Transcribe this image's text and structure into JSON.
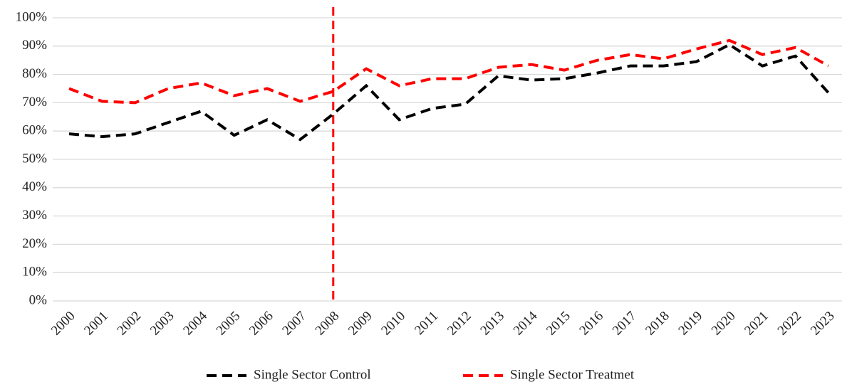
{
  "chart_data": {
    "type": "line",
    "categories": [
      "2000",
      "2001",
      "2002",
      "2003",
      "2004",
      "2005",
      "2006",
      "2007",
      "2008",
      "2009",
      "2010",
      "2011",
      "2012",
      "2013",
      "2014",
      "2015",
      "2016",
      "2017",
      "2018",
      "2019",
      "2020",
      "2021",
      "2022",
      "2023"
    ],
    "series": [
      {
        "name": "Single Sector Control",
        "color": "#000000",
        "values": [
          59,
          58,
          59,
          63,
          67,
          58.5,
          64,
          57,
          66,
          76,
          64,
          68,
          69.5,
          79.5,
          78,
          78.5,
          80.5,
          83,
          83,
          84.5,
          90.5,
          83,
          86.5,
          73.5
        ]
      },
      {
        "name": "Single Sector Treatmet",
        "color": "#ff0000",
        "values": [
          75,
          70.5,
          70,
          75,
          77,
          72.5,
          75,
          70.5,
          74,
          82,
          76,
          78.5,
          78.5,
          82.5,
          83.5,
          81.5,
          85,
          87,
          85.5,
          89,
          92,
          87,
          89.5,
          83
        ]
      }
    ],
    "ylim": [
      0,
      100
    ],
    "yticks": [
      {
        "value": 0,
        "label": "0%"
      },
      {
        "value": 10,
        "label": "10%"
      },
      {
        "value": 20,
        "label": "20%"
      },
      {
        "value": 30,
        "label": "30%"
      },
      {
        "value": 40,
        "label": "40%"
      },
      {
        "value": 50,
        "label": "50%"
      },
      {
        "value": 60,
        "label": "60%"
      },
      {
        "value": 70,
        "label": "70%"
      },
      {
        "value": 80,
        "label": "80%"
      },
      {
        "value": 90,
        "label": "90%"
      },
      {
        "value": 100,
        "label": "100%"
      }
    ],
    "grid": true,
    "legend": "bottom",
    "reference_line": {
      "x": "2008",
      "color": "#ff0000"
    }
  }
}
